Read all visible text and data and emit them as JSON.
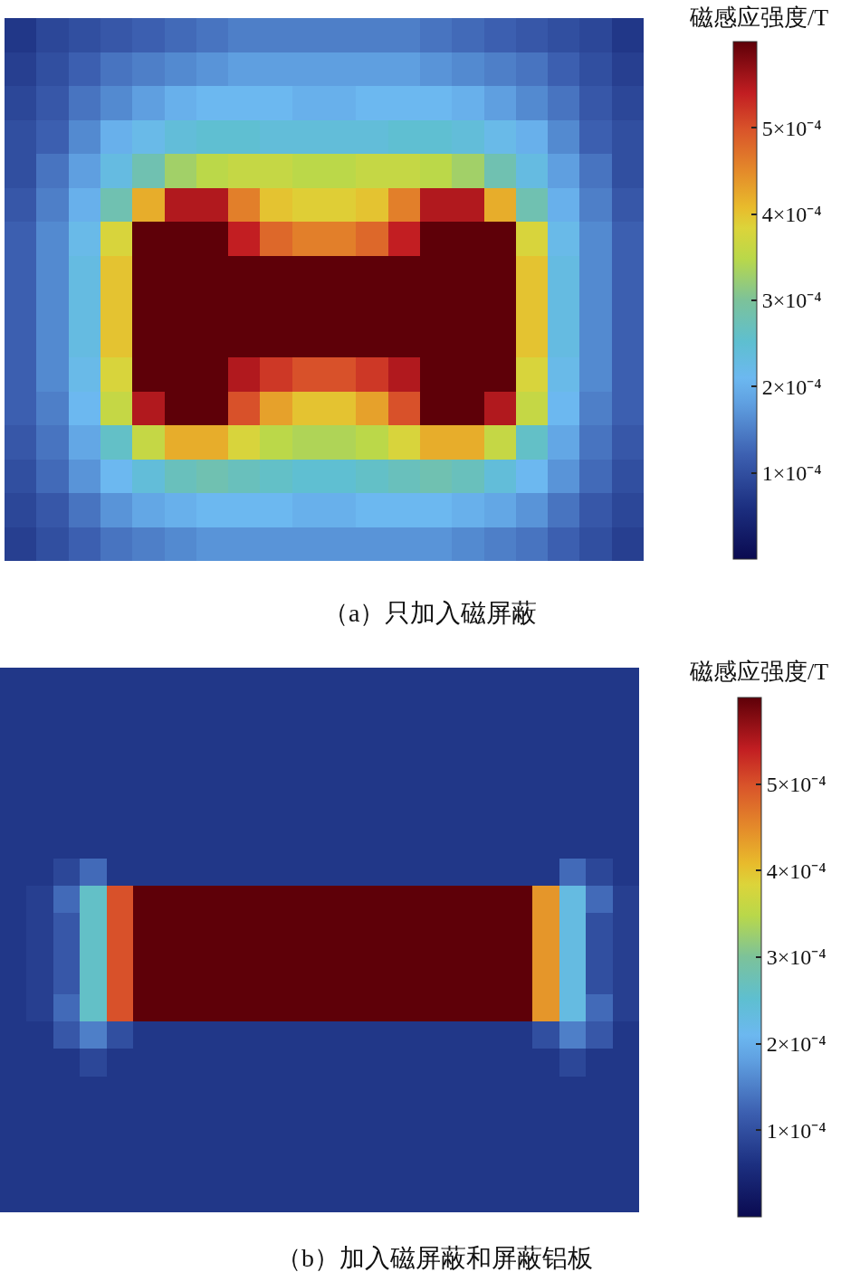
{
  "chart_data": [
    {
      "type": "heatmap",
      "title": "（a）只加入磁屏蔽",
      "clabel": "磁感应强度/T",
      "categories": [
        null,
        null,
        null,
        null,
        null,
        null,
        null,
        null,
        null,
        null,
        null,
        null,
        null,
        null,
        null,
        null,
        null,
        null,
        null,
        null
      ],
      "y_categories": [
        null,
        null,
        null,
        null,
        null,
        null,
        null,
        null,
        null,
        null,
        null,
        null,
        null,
        null,
        null,
        null
      ],
      "clim": [
        0,
        0.0006
      ],
      "cticks": [
        {
          "value": 0.0001,
          "label": "1×10⁻⁴"
        },
        {
          "value": 0.0002,
          "label": "2×10⁻⁴"
        },
        {
          "value": 0.0003,
          "label": "3×10⁻⁴"
        },
        {
          "value": 0.0004,
          "label": "4×10⁻⁴"
        },
        {
          "value": 0.0005,
          "label": "5×10⁻⁴"
        }
      ],
      "cells": [
        [
          7e-05,
          9e-05,
          0.0001,
          0.00011,
          0.00012,
          0.00013,
          0.00014,
          0.00015,
          0.00015,
          0.00015,
          0.00015,
          0.00015,
          0.00015,
          0.00014,
          0.00013,
          0.00012,
          0.00011,
          0.0001,
          9e-05,
          7e-05
        ],
        [
          8e-05,
          0.0001,
          0.00012,
          0.00014,
          0.00015,
          0.00016,
          0.00017,
          0.00018,
          0.00018,
          0.00018,
          0.00018,
          0.00018,
          0.00018,
          0.00017,
          0.00016,
          0.00015,
          0.00014,
          0.00012,
          0.0001,
          8e-05
        ],
        [
          9e-05,
          0.00011,
          0.00014,
          0.00016,
          0.00018,
          0.0002,
          0.00021,
          0.00021,
          0.00021,
          0.0002,
          0.0002,
          0.00021,
          0.00021,
          0.00021,
          0.0002,
          0.00018,
          0.00016,
          0.00014,
          0.00011,
          9e-05
        ],
        [
          0.0001,
          0.00012,
          0.00016,
          0.0002,
          0.00022,
          0.00024,
          0.00025,
          0.00025,
          0.00024,
          0.00024,
          0.00024,
          0.00024,
          0.00025,
          0.00025,
          0.00024,
          0.00022,
          0.0002,
          0.00016,
          0.00012,
          0.0001
        ],
        [
          0.0001,
          0.00014,
          0.00018,
          0.00023,
          0.00028,
          0.00033,
          0.00035,
          0.00036,
          0.00036,
          0.00035,
          0.00035,
          0.00036,
          0.00036,
          0.00035,
          0.00033,
          0.00028,
          0.00023,
          0.00018,
          0.00014,
          0.0001
        ],
        [
          0.00011,
          0.00015,
          0.0002,
          0.00028,
          0.00042,
          0.00055,
          0.00055,
          0.00046,
          0.0004,
          0.00039,
          0.00039,
          0.0004,
          0.00046,
          0.00055,
          0.00055,
          0.00042,
          0.00028,
          0.0002,
          0.00015,
          0.00011
        ],
        [
          0.00012,
          0.00016,
          0.00022,
          0.00038,
          0.0006,
          0.0006,
          0.0006,
          0.00054,
          0.00048,
          0.00046,
          0.00046,
          0.00048,
          0.00054,
          0.0006,
          0.0006,
          0.0006,
          0.00038,
          0.00022,
          0.00016,
          0.00012
        ],
        [
          0.00012,
          0.00016,
          0.00023,
          0.0004,
          0.0006,
          0.0006,
          0.0006,
          0.0006,
          0.0006,
          0.0006,
          0.0006,
          0.0006,
          0.0006,
          0.0006,
          0.0006,
          0.0006,
          0.0004,
          0.00023,
          0.00016,
          0.00012
        ],
        [
          0.00012,
          0.00016,
          0.00023,
          0.0004,
          0.0006,
          0.0006,
          0.0006,
          0.0006,
          0.0006,
          0.0006,
          0.0006,
          0.0006,
          0.0006,
          0.0006,
          0.0006,
          0.0006,
          0.0004,
          0.00023,
          0.00016,
          0.00012
        ],
        [
          0.00012,
          0.00016,
          0.00023,
          0.0004,
          0.0006,
          0.0006,
          0.0006,
          0.0006,
          0.0006,
          0.0006,
          0.0006,
          0.0006,
          0.0006,
          0.0006,
          0.0006,
          0.0006,
          0.0004,
          0.00023,
          0.00016,
          0.00012
        ],
        [
          0.00012,
          0.00016,
          0.00022,
          0.00038,
          0.0006,
          0.0006,
          0.0006,
          0.00055,
          0.00052,
          0.0005,
          0.0005,
          0.00052,
          0.00055,
          0.0006,
          0.0006,
          0.0006,
          0.00038,
          0.00022,
          0.00016,
          0.00012
        ],
        [
          0.00012,
          0.00015,
          0.00021,
          0.00036,
          0.00055,
          0.0006,
          0.0006,
          0.0005,
          0.00043,
          0.0004,
          0.0004,
          0.00043,
          0.0005,
          0.0006,
          0.0006,
          0.00055,
          0.00036,
          0.00021,
          0.00015,
          0.00012
        ],
        [
          0.00011,
          0.00014,
          0.00019,
          0.00026,
          0.00036,
          0.00042,
          0.00042,
          0.00038,
          0.00035,
          0.00034,
          0.00034,
          0.00035,
          0.00038,
          0.00042,
          0.00042,
          0.00036,
          0.00026,
          0.00019,
          0.00014,
          0.00011
        ],
        [
          0.0001,
          0.00013,
          0.00017,
          0.00021,
          0.00024,
          0.00027,
          0.00028,
          0.00027,
          0.00026,
          0.00025,
          0.00025,
          0.00026,
          0.00027,
          0.00028,
          0.00027,
          0.00024,
          0.00021,
          0.00017,
          0.00013,
          0.0001
        ],
        [
          9e-05,
          0.00011,
          0.00014,
          0.00017,
          0.00019,
          0.0002,
          0.00021,
          0.00021,
          0.00021,
          0.0002,
          0.0002,
          0.00021,
          0.00021,
          0.00021,
          0.0002,
          0.00019,
          0.00017,
          0.00014,
          0.00011,
          9e-05
        ],
        [
          8e-05,
          0.0001,
          0.00012,
          0.00014,
          0.00015,
          0.00016,
          0.00017,
          0.00017,
          0.00017,
          0.00017,
          0.00017,
          0.00017,
          0.00017,
          0.00017,
          0.00016,
          0.00015,
          0.00014,
          0.00012,
          0.0001,
          8e-05
        ]
      ]
    },
    {
      "type": "heatmap",
      "title": "（b）加入磁屏蔽和屏蔽铝板",
      "clabel": "磁感应强度/T",
      "categories": [
        null,
        null,
        null,
        null,
        null,
        null,
        null,
        null,
        null,
        null,
        null,
        null,
        null,
        null,
        null,
        null,
        null,
        null,
        null,
        null,
        null,
        null,
        null,
        null
      ],
      "y_categories": [
        null,
        null,
        null,
        null,
        null,
        null,
        null,
        null,
        null,
        null,
        null,
        null,
        null,
        null,
        null,
        null,
        null,
        null,
        null,
        null
      ],
      "clim": [
        0,
        0.0006
      ],
      "cticks": [
        {
          "value": 0.0001,
          "label": "1×10⁻⁴"
        },
        {
          "value": 0.0002,
          "label": "2×10⁻⁴"
        },
        {
          "value": 0.0003,
          "label": "3×10⁻⁴"
        },
        {
          "value": 0.0004,
          "label": "4×10⁻⁴"
        },
        {
          "value": 0.0005,
          "label": "5×10⁻⁴"
        }
      ],
      "cells": [
        [
          7e-05,
          7e-05,
          7e-05,
          7e-05,
          7e-05,
          7e-05,
          7e-05,
          7e-05,
          7e-05,
          7e-05,
          7e-05,
          7e-05,
          7e-05,
          7e-05,
          7e-05,
          7e-05,
          7e-05,
          7e-05,
          7e-05,
          7e-05,
          7e-05,
          7e-05,
          7e-05,
          7e-05
        ],
        [
          7e-05,
          7e-05,
          7e-05,
          7e-05,
          7e-05,
          7e-05,
          7e-05,
          7e-05,
          7e-05,
          7e-05,
          7e-05,
          7e-05,
          7e-05,
          7e-05,
          7e-05,
          7e-05,
          7e-05,
          7e-05,
          7e-05,
          7e-05,
          7e-05,
          7e-05,
          7e-05,
          7e-05
        ],
        [
          7e-05,
          7e-05,
          7e-05,
          7e-05,
          7e-05,
          7e-05,
          7e-05,
          7e-05,
          7e-05,
          7e-05,
          7e-05,
          7e-05,
          7e-05,
          7e-05,
          7e-05,
          7e-05,
          7e-05,
          7e-05,
          7e-05,
          7e-05,
          7e-05,
          7e-05,
          7e-05,
          7e-05
        ],
        [
          7e-05,
          7e-05,
          7e-05,
          7e-05,
          7e-05,
          7e-05,
          7e-05,
          7e-05,
          7e-05,
          7e-05,
          7e-05,
          7e-05,
          7e-05,
          7e-05,
          7e-05,
          7e-05,
          7e-05,
          7e-05,
          7e-05,
          7e-05,
          7e-05,
          7e-05,
          7e-05,
          7e-05
        ],
        [
          7e-05,
          7e-05,
          7e-05,
          7e-05,
          7e-05,
          7e-05,
          7e-05,
          7e-05,
          7e-05,
          7e-05,
          7e-05,
          7e-05,
          7e-05,
          7e-05,
          7e-05,
          7e-05,
          7e-05,
          7e-05,
          7e-05,
          7e-05,
          7e-05,
          7e-05,
          7e-05,
          7e-05
        ],
        [
          7e-05,
          7e-05,
          7e-05,
          7e-05,
          7e-05,
          7e-05,
          7e-05,
          7e-05,
          7e-05,
          7e-05,
          7e-05,
          7e-05,
          7e-05,
          7e-05,
          7e-05,
          7e-05,
          7e-05,
          7e-05,
          7e-05,
          7e-05,
          7e-05,
          7e-05,
          7e-05,
          7e-05
        ],
        [
          7e-05,
          7e-05,
          7e-05,
          7e-05,
          7e-05,
          7e-05,
          7e-05,
          7e-05,
          7e-05,
          7e-05,
          7e-05,
          7e-05,
          7e-05,
          7e-05,
          7e-05,
          7e-05,
          7e-05,
          7e-05,
          7e-05,
          7e-05,
          7e-05,
          7e-05,
          7e-05,
          7e-05
        ],
        [
          7e-05,
          7e-05,
          9e-05,
          0.00013,
          7e-05,
          7e-05,
          7e-05,
          7e-05,
          7e-05,
          7e-05,
          7e-05,
          7e-05,
          7e-05,
          7e-05,
          7e-05,
          7e-05,
          7e-05,
          7e-05,
          7e-05,
          7e-05,
          7e-05,
          0.00013,
          9e-05,
          7e-05
        ],
        [
          7e-05,
          8e-05,
          0.00013,
          0.00026,
          0.0005,
          0.0006,
          0.0006,
          0.0006,
          0.0006,
          0.0006,
          0.0006,
          0.0006,
          0.0006,
          0.0006,
          0.0006,
          0.0006,
          0.0006,
          0.0006,
          0.0006,
          0.0006,
          0.00044,
          0.00023,
          0.00013,
          8e-05
        ],
        [
          7e-05,
          8e-05,
          0.00011,
          0.00026,
          0.0005,
          0.0006,
          0.0006,
          0.0006,
          0.0006,
          0.0006,
          0.0006,
          0.0006,
          0.0006,
          0.0006,
          0.0006,
          0.0006,
          0.0006,
          0.0006,
          0.0006,
          0.0006,
          0.00044,
          0.00023,
          0.0001,
          8e-05
        ],
        [
          7e-05,
          8e-05,
          0.00011,
          0.00026,
          0.0005,
          0.0006,
          0.0006,
          0.0006,
          0.0006,
          0.0006,
          0.0006,
          0.0006,
          0.0006,
          0.0006,
          0.0006,
          0.0006,
          0.0006,
          0.0006,
          0.0006,
          0.0006,
          0.00044,
          0.00023,
          0.0001,
          8e-05
        ],
        [
          7e-05,
          8e-05,
          0.00011,
          0.00026,
          0.0005,
          0.0006,
          0.0006,
          0.0006,
          0.0006,
          0.0006,
          0.0006,
          0.0006,
          0.0006,
          0.0006,
          0.0006,
          0.0006,
          0.0006,
          0.0006,
          0.0006,
          0.0006,
          0.00044,
          0.00023,
          0.0001,
          8e-05
        ],
        [
          7e-05,
          8e-05,
          0.00013,
          0.00026,
          0.0005,
          0.0006,
          0.0006,
          0.0006,
          0.0006,
          0.0006,
          0.0006,
          0.0006,
          0.0006,
          0.0006,
          0.0006,
          0.0006,
          0.0006,
          0.0006,
          0.0006,
          0.0006,
          0.00044,
          0.00023,
          0.00013,
          8e-05
        ],
        [
          7e-05,
          7e-05,
          0.00011,
          0.00015,
          0.0001,
          7e-05,
          7e-05,
          7e-05,
          7e-05,
          7e-05,
          7e-05,
          7e-05,
          7e-05,
          7e-05,
          7e-05,
          7e-05,
          7e-05,
          7e-05,
          7e-05,
          7e-05,
          0.0001,
          0.00015,
          0.00011,
          7e-05
        ],
        [
          7e-05,
          7e-05,
          7e-05,
          9e-05,
          7e-05,
          7e-05,
          7e-05,
          7e-05,
          7e-05,
          7e-05,
          7e-05,
          7e-05,
          7e-05,
          7e-05,
          7e-05,
          7e-05,
          7e-05,
          7e-05,
          7e-05,
          7e-05,
          7e-05,
          9e-05,
          7e-05,
          7e-05
        ],
        [
          7e-05,
          7e-05,
          7e-05,
          7e-05,
          7e-05,
          7e-05,
          7e-05,
          7e-05,
          7e-05,
          7e-05,
          7e-05,
          7e-05,
          7e-05,
          7e-05,
          7e-05,
          7e-05,
          7e-05,
          7e-05,
          7e-05,
          7e-05,
          7e-05,
          7e-05,
          7e-05,
          7e-05
        ],
        [
          7e-05,
          7e-05,
          7e-05,
          7e-05,
          7e-05,
          7e-05,
          7e-05,
          7e-05,
          7e-05,
          7e-05,
          7e-05,
          7e-05,
          7e-05,
          7e-05,
          7e-05,
          7e-05,
          7e-05,
          7e-05,
          7e-05,
          7e-05,
          7e-05,
          7e-05,
          7e-05,
          7e-05
        ],
        [
          7e-05,
          7e-05,
          7e-05,
          7e-05,
          7e-05,
          7e-05,
          7e-05,
          7e-05,
          7e-05,
          7e-05,
          7e-05,
          7e-05,
          7e-05,
          7e-05,
          7e-05,
          7e-05,
          7e-05,
          7e-05,
          7e-05,
          7e-05,
          7e-05,
          7e-05,
          7e-05,
          7e-05
        ],
        [
          7e-05,
          7e-05,
          7e-05,
          7e-05,
          7e-05,
          7e-05,
          7e-05,
          7e-05,
          7e-05,
          7e-05,
          7e-05,
          7e-05,
          7e-05,
          7e-05,
          7e-05,
          7e-05,
          7e-05,
          7e-05,
          7e-05,
          7e-05,
          7e-05,
          7e-05,
          7e-05,
          7e-05
        ],
        [
          7e-05,
          7e-05,
          7e-05,
          7e-05,
          7e-05,
          7e-05,
          7e-05,
          7e-05,
          7e-05,
          7e-05,
          7e-05,
          7e-05,
          7e-05,
          7e-05,
          7e-05,
          7e-05,
          7e-05,
          7e-05,
          7e-05,
          7e-05,
          7e-05,
          7e-05,
          7e-05,
          7e-05
        ]
      ]
    }
  ]
}
